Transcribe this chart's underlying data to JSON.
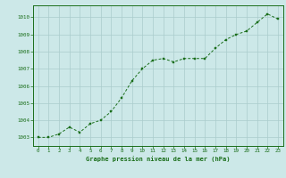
{
  "x": [
    0,
    1,
    2,
    3,
    4,
    5,
    6,
    7,
    8,
    9,
    10,
    11,
    12,
    13,
    14,
    15,
    16,
    17,
    18,
    19,
    20,
    21,
    22,
    23
  ],
  "y": [
    1003.0,
    1003.0,
    1003.2,
    1003.6,
    1003.3,
    1003.8,
    1004.0,
    1004.5,
    1005.3,
    1006.3,
    1007.0,
    1007.5,
    1007.6,
    1007.4,
    1007.6,
    1007.6,
    1007.6,
    1008.2,
    1008.7,
    1009.0,
    1009.2,
    1009.7,
    1010.2,
    1009.9
  ],
  "line_color": "#1a6e1a",
  "marker_color": "#1a6e1a",
  "bg_color": "#cce8e8",
  "grid_color": "#aacccc",
  "xlabel": "Graphe pression niveau de la mer (hPa)",
  "xlabel_color": "#1a6e1a",
  "tick_color": "#1a6e1a",
  "ylim": [
    1002.5,
    1010.7
  ],
  "xlim": [
    -0.5,
    23.5
  ],
  "yticks": [
    1003,
    1004,
    1005,
    1006,
    1007,
    1008,
    1009,
    1010
  ],
  "xticks": [
    0,
    1,
    2,
    3,
    4,
    5,
    6,
    7,
    8,
    9,
    10,
    11,
    12,
    13,
    14,
    15,
    16,
    17,
    18,
    19,
    20,
    21,
    22,
    23
  ]
}
